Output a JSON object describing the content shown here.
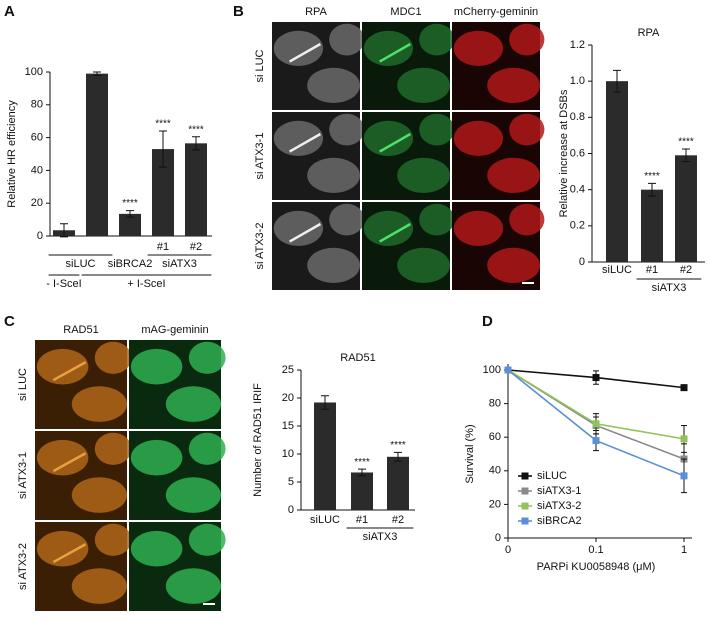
{
  "panels": {
    "letters": [
      "A",
      "B",
      "C",
      "D"
    ],
    "micrograph_b": {
      "columns": [
        "RPA",
        "MDC1",
        "mCherry-geminin"
      ],
      "rows": [
        "si LUC",
        "si ATX3-1",
        "si ATX3-2"
      ]
    },
    "micrograph_c": {
      "columns": [
        "RAD51",
        "mAG-geminin"
      ],
      "rows": [
        "si LUC",
        "si ATX3-1",
        "si ATX3-2"
      ]
    }
  },
  "chart_data": [
    {
      "type": "bar",
      "y_label": "Relative HR efficiency",
      "categories": [
        null,
        null,
        null,
        "#1",
        "#2"
      ],
      "values": [
        3.5,
        99,
        13.5,
        53,
        56.5
      ],
      "errors": [
        4,
        1,
        2,
        11,
        4
      ],
      "annotations": [
        null,
        null,
        "****",
        "****",
        "****"
      ],
      "group_rows": [
        [
          {
            "label": "siLUC",
            "from": 0,
            "to": 1,
            "line": true
          },
          {
            "label": "siBRCA2",
            "from": 2,
            "to": 2,
            "line": false
          },
          {
            "label": "siATX3",
            "from": 3,
            "to": 4,
            "line": true
          }
        ],
        [
          {
            "label": "- I-SceI",
            "from": 0,
            "to": 0,
            "line": true
          },
          {
            "label": "+ I-SceI",
            "from": 1,
            "to": 4,
            "line": true
          }
        ]
      ],
      "color": "#2b2b2b",
      "ylim": [
        0,
        100
      ],
      "yticks": [
        0,
        20,
        40,
        60,
        80,
        100
      ]
    },
    {
      "type": "bar",
      "title": "RPA",
      "y_label": "Relative increase at DSBs",
      "categories": [
        "siLUC",
        "#1",
        "#2"
      ],
      "values": [
        1.0,
        0.4,
        0.59
      ],
      "errors": [
        0.06,
        0.035,
        0.035
      ],
      "annotations": [
        null,
        "****",
        "****"
      ],
      "group_rows": [
        [
          {
            "label": "siATX3",
            "from": 1,
            "to": 2,
            "line": true
          }
        ]
      ],
      "color": "#2b2b2b",
      "ylim": [
        0,
        1.2
      ],
      "yticks": [
        0,
        {
          "value": 0.2,
          "label": "0.2"
        },
        {
          "value": 0.4,
          "label": "0.4"
        },
        {
          "value": 0.6,
          "label": "0.6"
        },
        {
          "value": 0.8,
          "label": "0.8"
        },
        {
          "value": 1,
          "label": "1.0"
        },
        {
          "value": 1.2,
          "label": "1.2"
        }
      ]
    },
    {
      "type": "bar",
      "title": "RAD51",
      "y_label": "Number of RAD51 IRIF",
      "categories": [
        "siLUC",
        "#1",
        "#2"
      ],
      "values": [
        19.2,
        6.7,
        9.5
      ],
      "errors": [
        1.2,
        0.6,
        0.8
      ],
      "annotations": [
        null,
        "****",
        "****"
      ],
      "group_rows": [
        [
          {
            "label": "siATX3",
            "from": 1,
            "to": 2,
            "line": true
          }
        ]
      ],
      "color": "#2b2b2b",
      "ylim": [
        0,
        25
      ],
      "yticks": [
        0,
        5,
        10,
        15,
        20,
        25
      ]
    },
    {
      "type": "line",
      "x_label": "PARPi KU0058948 (μM)",
      "y_label": "Survival (%)",
      "categories": [
        "0",
        "0.1",
        "1"
      ],
      "legend": "lower left",
      "ylim": [
        0,
        100
      ],
      "yticks": [
        0,
        20,
        40,
        60,
        80,
        100
      ],
      "series": [
        {
          "name": "siLUC",
          "color": "#111111",
          "values": [
            100,
            95.5,
            89.5
          ],
          "errors": [
            0,
            4,
            1
          ]
        },
        {
          "name": "siATX3-1",
          "color": "#8a8a8a",
          "values": [
            100,
            67,
            47
          ],
          "errors": [
            0,
            5,
            9
          ]
        },
        {
          "name": "siATX3-2",
          "color": "#92c35a",
          "values": [
            100,
            68,
            59
          ],
          "errors": [
            0,
            6,
            8
          ]
        },
        {
          "name": "siBRCA2",
          "color": "#5b8fd6",
          "values": [
            100,
            58,
            37
          ],
          "errors": [
            0,
            6,
            10
          ]
        }
      ]
    }
  ]
}
